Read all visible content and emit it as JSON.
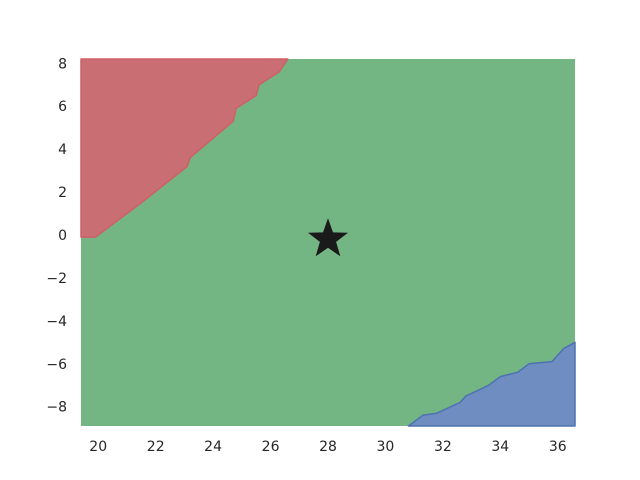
{
  "chart_data": {
    "type": "heatmap",
    "title": "",
    "xlabel": "",
    "ylabel": "",
    "xlim": [
      19.4,
      36.6
    ],
    "ylim": [
      -8.9,
      8.2
    ],
    "x_ticks": [
      20,
      22,
      24,
      26,
      28,
      30,
      32,
      34,
      36
    ],
    "y_ticks": [
      8,
      6,
      4,
      2,
      0,
      -2,
      -4,
      -6,
      -8
    ],
    "x_tick_labels": [
      "20",
      "22",
      "24",
      "26",
      "28",
      "30",
      "32",
      "34",
      "36"
    ],
    "y_tick_labels": [
      "8",
      "6",
      "4",
      "2",
      "0",
      "−2",
      "−4",
      "−6",
      "−8"
    ],
    "grid": false,
    "regions": [
      {
        "class": "red",
        "color": "#c96f73",
        "edge_color": "#cf5f66",
        "boundary": [
          [
            19.4,
            8.2
          ],
          [
            26.6,
            8.2
          ],
          [
            26.3,
            7.6
          ],
          [
            25.6,
            7.0
          ],
          [
            25.5,
            6.5
          ],
          [
            24.8,
            5.9
          ],
          [
            24.7,
            5.3
          ],
          [
            23.2,
            3.6
          ],
          [
            23.1,
            3.2
          ],
          [
            21.5,
            1.5
          ],
          [
            20.0,
            0.0
          ],
          [
            19.9,
            -0.1
          ],
          [
            19.4,
            -0.1
          ]
        ]
      },
      {
        "class": "green",
        "color": "#74b584",
        "edge_color": "#74b584",
        "boundary": []
      },
      {
        "class": "blue",
        "color": "#6f8dc1",
        "edge_color": "#4c72b0",
        "boundary": [
          [
            36.6,
            -8.9
          ],
          [
            30.8,
            -8.9
          ],
          [
            31.3,
            -8.4
          ],
          [
            31.8,
            -8.3
          ],
          [
            32.6,
            -7.8
          ],
          [
            32.8,
            -7.5
          ],
          [
            33.6,
            -7.0
          ],
          [
            34.0,
            -6.6
          ],
          [
            34.6,
            -6.4
          ],
          [
            35.0,
            -6.0
          ],
          [
            35.8,
            -5.9
          ],
          [
            36.2,
            -5.3
          ],
          [
            36.6,
            -5.0
          ]
        ]
      }
    ],
    "marker": {
      "shape": "star",
      "color": "#1a1a1a",
      "x": 28.0,
      "y": -0.2
    }
  }
}
